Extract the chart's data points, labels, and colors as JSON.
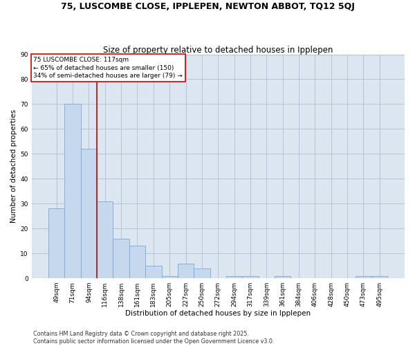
{
  "title1": "75, LUSCOMBE CLOSE, IPPLEPEN, NEWTON ABBOT, TQ12 5QJ",
  "title2": "Size of property relative to detached houses in Ipplepen",
  "xlabel": "Distribution of detached houses by size in Ipplepen",
  "ylabel": "Number of detached properties",
  "categories": [
    "49sqm",
    "71sqm",
    "94sqm",
    "116sqm",
    "138sqm",
    "161sqm",
    "183sqm",
    "205sqm",
    "227sqm",
    "250sqm",
    "272sqm",
    "294sqm",
    "317sqm",
    "339sqm",
    "361sqm",
    "384sqm",
    "406sqm",
    "428sqm",
    "450sqm",
    "473sqm",
    "495sqm"
  ],
  "values": [
    28,
    70,
    52,
    31,
    16,
    13,
    5,
    1,
    6,
    4,
    0,
    1,
    1,
    0,
    1,
    0,
    0,
    0,
    0,
    1,
    1
  ],
  "bar_color": "#c5d8ee",
  "bar_edge_color": "#7aaad0",
  "highlight_line_index": 3,
  "highlight_color": "#cc0000",
  "annotation_text": "75 LUSCOMBE CLOSE: 117sqm\n← 65% of detached houses are smaller (150)\n34% of semi-detached houses are larger (79) →",
  "annotation_box_color": "#cc0000",
  "ylim": [
    0,
    90
  ],
  "yticks": [
    0,
    10,
    20,
    30,
    40,
    50,
    60,
    70,
    80,
    90
  ],
  "grid_color": "#b0bdd0",
  "bg_color": "#dce6f1",
  "footer": "Contains HM Land Registry data © Crown copyright and database right 2025.\nContains public sector information licensed under the Open Government Licence v3.0.",
  "title_fontsize": 9,
  "subtitle_fontsize": 8.5,
  "axis_label_fontsize": 7.5,
  "tick_fontsize": 6.5,
  "annotation_fontsize": 6.5,
  "footer_fontsize": 5.8
}
